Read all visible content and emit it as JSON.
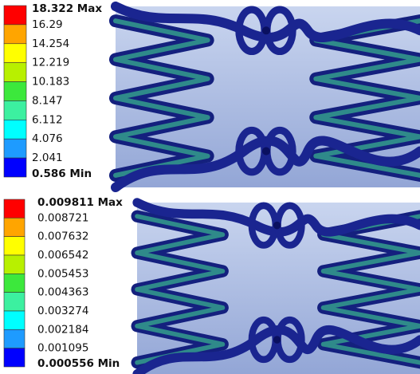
{
  "panels": [
    {
      "legend": {
        "labels": [
          "18.322 Max",
          "16.29",
          "14.254",
          "12.219",
          "10.183",
          "8.147",
          "6.112",
          "4.076",
          "2.041",
          "0.586 Min"
        ]
      }
    },
    {
      "legend": {
        "labels": [
          "0.009811 Max",
          "0.008721",
          "0.007632",
          "0.006542",
          "0.005453",
          "0.004363",
          "0.003274",
          "0.002184",
          "0.001095",
          "0.000556 Min"
        ]
      }
    }
  ]
}
